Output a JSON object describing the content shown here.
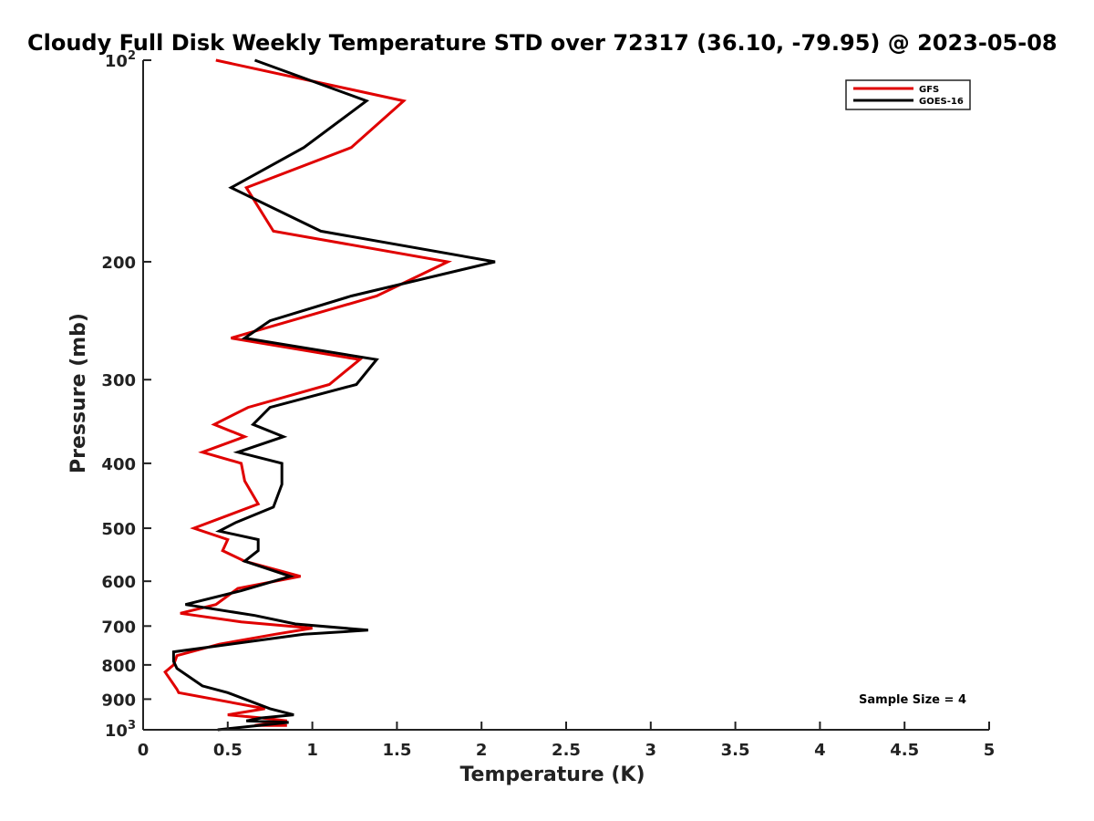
{
  "chart_data": {
    "type": "line",
    "title": "Cloudy Full Disk Weekly Temperature STD over 72317 (36.10, -79.95) @ 2023-05-08",
    "xlabel": "Temperature (K)",
    "ylabel": "Pressure (mb)",
    "xlim": [
      0,
      5
    ],
    "ylim": [
      1000,
      100
    ],
    "y_scale": "log",
    "x_ticks": [
      "0",
      "0.5",
      "1",
      "1.5",
      "2",
      "2.5",
      "3",
      "3.5",
      "4",
      "4.5",
      "5"
    ],
    "y_ticks": [
      {
        "value": 100,
        "base": "10",
        "exp": "2"
      },
      {
        "value": 200,
        "label": "200"
      },
      {
        "value": 300,
        "label": "300"
      },
      {
        "value": 400,
        "label": "400"
      },
      {
        "value": 500,
        "label": "500"
      },
      {
        "value": 600,
        "label": "600"
      },
      {
        "value": 700,
        "label": "700"
      },
      {
        "value": 800,
        "label": "800"
      },
      {
        "value": 900,
        "label": "900"
      },
      {
        "value": 1000,
        "base": "10",
        "exp": "3"
      }
    ],
    "legend_position": "top-right",
    "grid": false,
    "annotation": "Sample Size = 4",
    "series": [
      {
        "name": "GFS",
        "color": "#e00000",
        "points": [
          [
            0.43,
            100
          ],
          [
            1.54,
            115
          ],
          [
            1.23,
            135
          ],
          [
            0.61,
            155
          ],
          [
            0.77,
            180
          ],
          [
            1.8,
            200
          ],
          [
            1.38,
            225
          ],
          [
            0.52,
            260
          ],
          [
            1.28,
            280
          ],
          [
            1.1,
            305
          ],
          [
            0.62,
            330
          ],
          [
            0.42,
            350
          ],
          [
            0.6,
            365
          ],
          [
            0.35,
            385
          ],
          [
            0.58,
            400
          ],
          [
            0.6,
            425
          ],
          [
            0.68,
            460
          ],
          [
            0.3,
            500
          ],
          [
            0.5,
            520
          ],
          [
            0.47,
            540
          ],
          [
            0.6,
            560
          ],
          [
            0.93,
            590
          ],
          [
            0.56,
            615
          ],
          [
            0.43,
            650
          ],
          [
            0.22,
            670
          ],
          [
            0.58,
            690
          ],
          [
            1.0,
            705
          ],
          [
            0.78,
            720
          ],
          [
            0.45,
            745
          ],
          [
            0.2,
            775
          ],
          [
            0.18,
            800
          ],
          [
            0.13,
            820
          ],
          [
            0.2,
            870
          ],
          [
            0.21,
            880
          ],
          [
            0.72,
            930
          ],
          [
            0.5,
            950
          ],
          [
            0.7,
            960
          ],
          [
            0.85,
            970
          ],
          [
            0.66,
            985
          ],
          [
            0.85,
            985
          ]
        ]
      },
      {
        "name": "GOES-16",
        "color": "#000000",
        "points": [
          [
            0.66,
            100
          ],
          [
            1.32,
            115
          ],
          [
            0.95,
            135
          ],
          [
            0.52,
            155
          ],
          [
            1.05,
            180
          ],
          [
            2.08,
            200
          ],
          [
            1.23,
            225
          ],
          [
            0.75,
            245
          ],
          [
            0.6,
            260
          ],
          [
            1.38,
            280
          ],
          [
            1.26,
            305
          ],
          [
            0.75,
            330
          ],
          [
            0.65,
            350
          ],
          [
            0.83,
            365
          ],
          [
            0.56,
            385
          ],
          [
            0.82,
            400
          ],
          [
            0.82,
            430
          ],
          [
            0.77,
            465
          ],
          [
            0.55,
            490
          ],
          [
            0.45,
            505
          ],
          [
            0.68,
            520
          ],
          [
            0.68,
            540
          ],
          [
            0.6,
            560
          ],
          [
            0.87,
            590
          ],
          [
            0.58,
            620
          ],
          [
            0.25,
            650
          ],
          [
            0.66,
            675
          ],
          [
            0.9,
            695
          ],
          [
            1.33,
            710
          ],
          [
            0.95,
            720
          ],
          [
            0.18,
            765
          ],
          [
            0.18,
            790
          ],
          [
            0.2,
            810
          ],
          [
            0.35,
            860
          ],
          [
            0.5,
            880
          ],
          [
            0.75,
            930
          ],
          [
            0.89,
            950
          ],
          [
            0.7,
            960
          ],
          [
            0.61,
            970
          ],
          [
            0.86,
            975
          ],
          [
            0.44,
            1000
          ]
        ]
      }
    ]
  }
}
